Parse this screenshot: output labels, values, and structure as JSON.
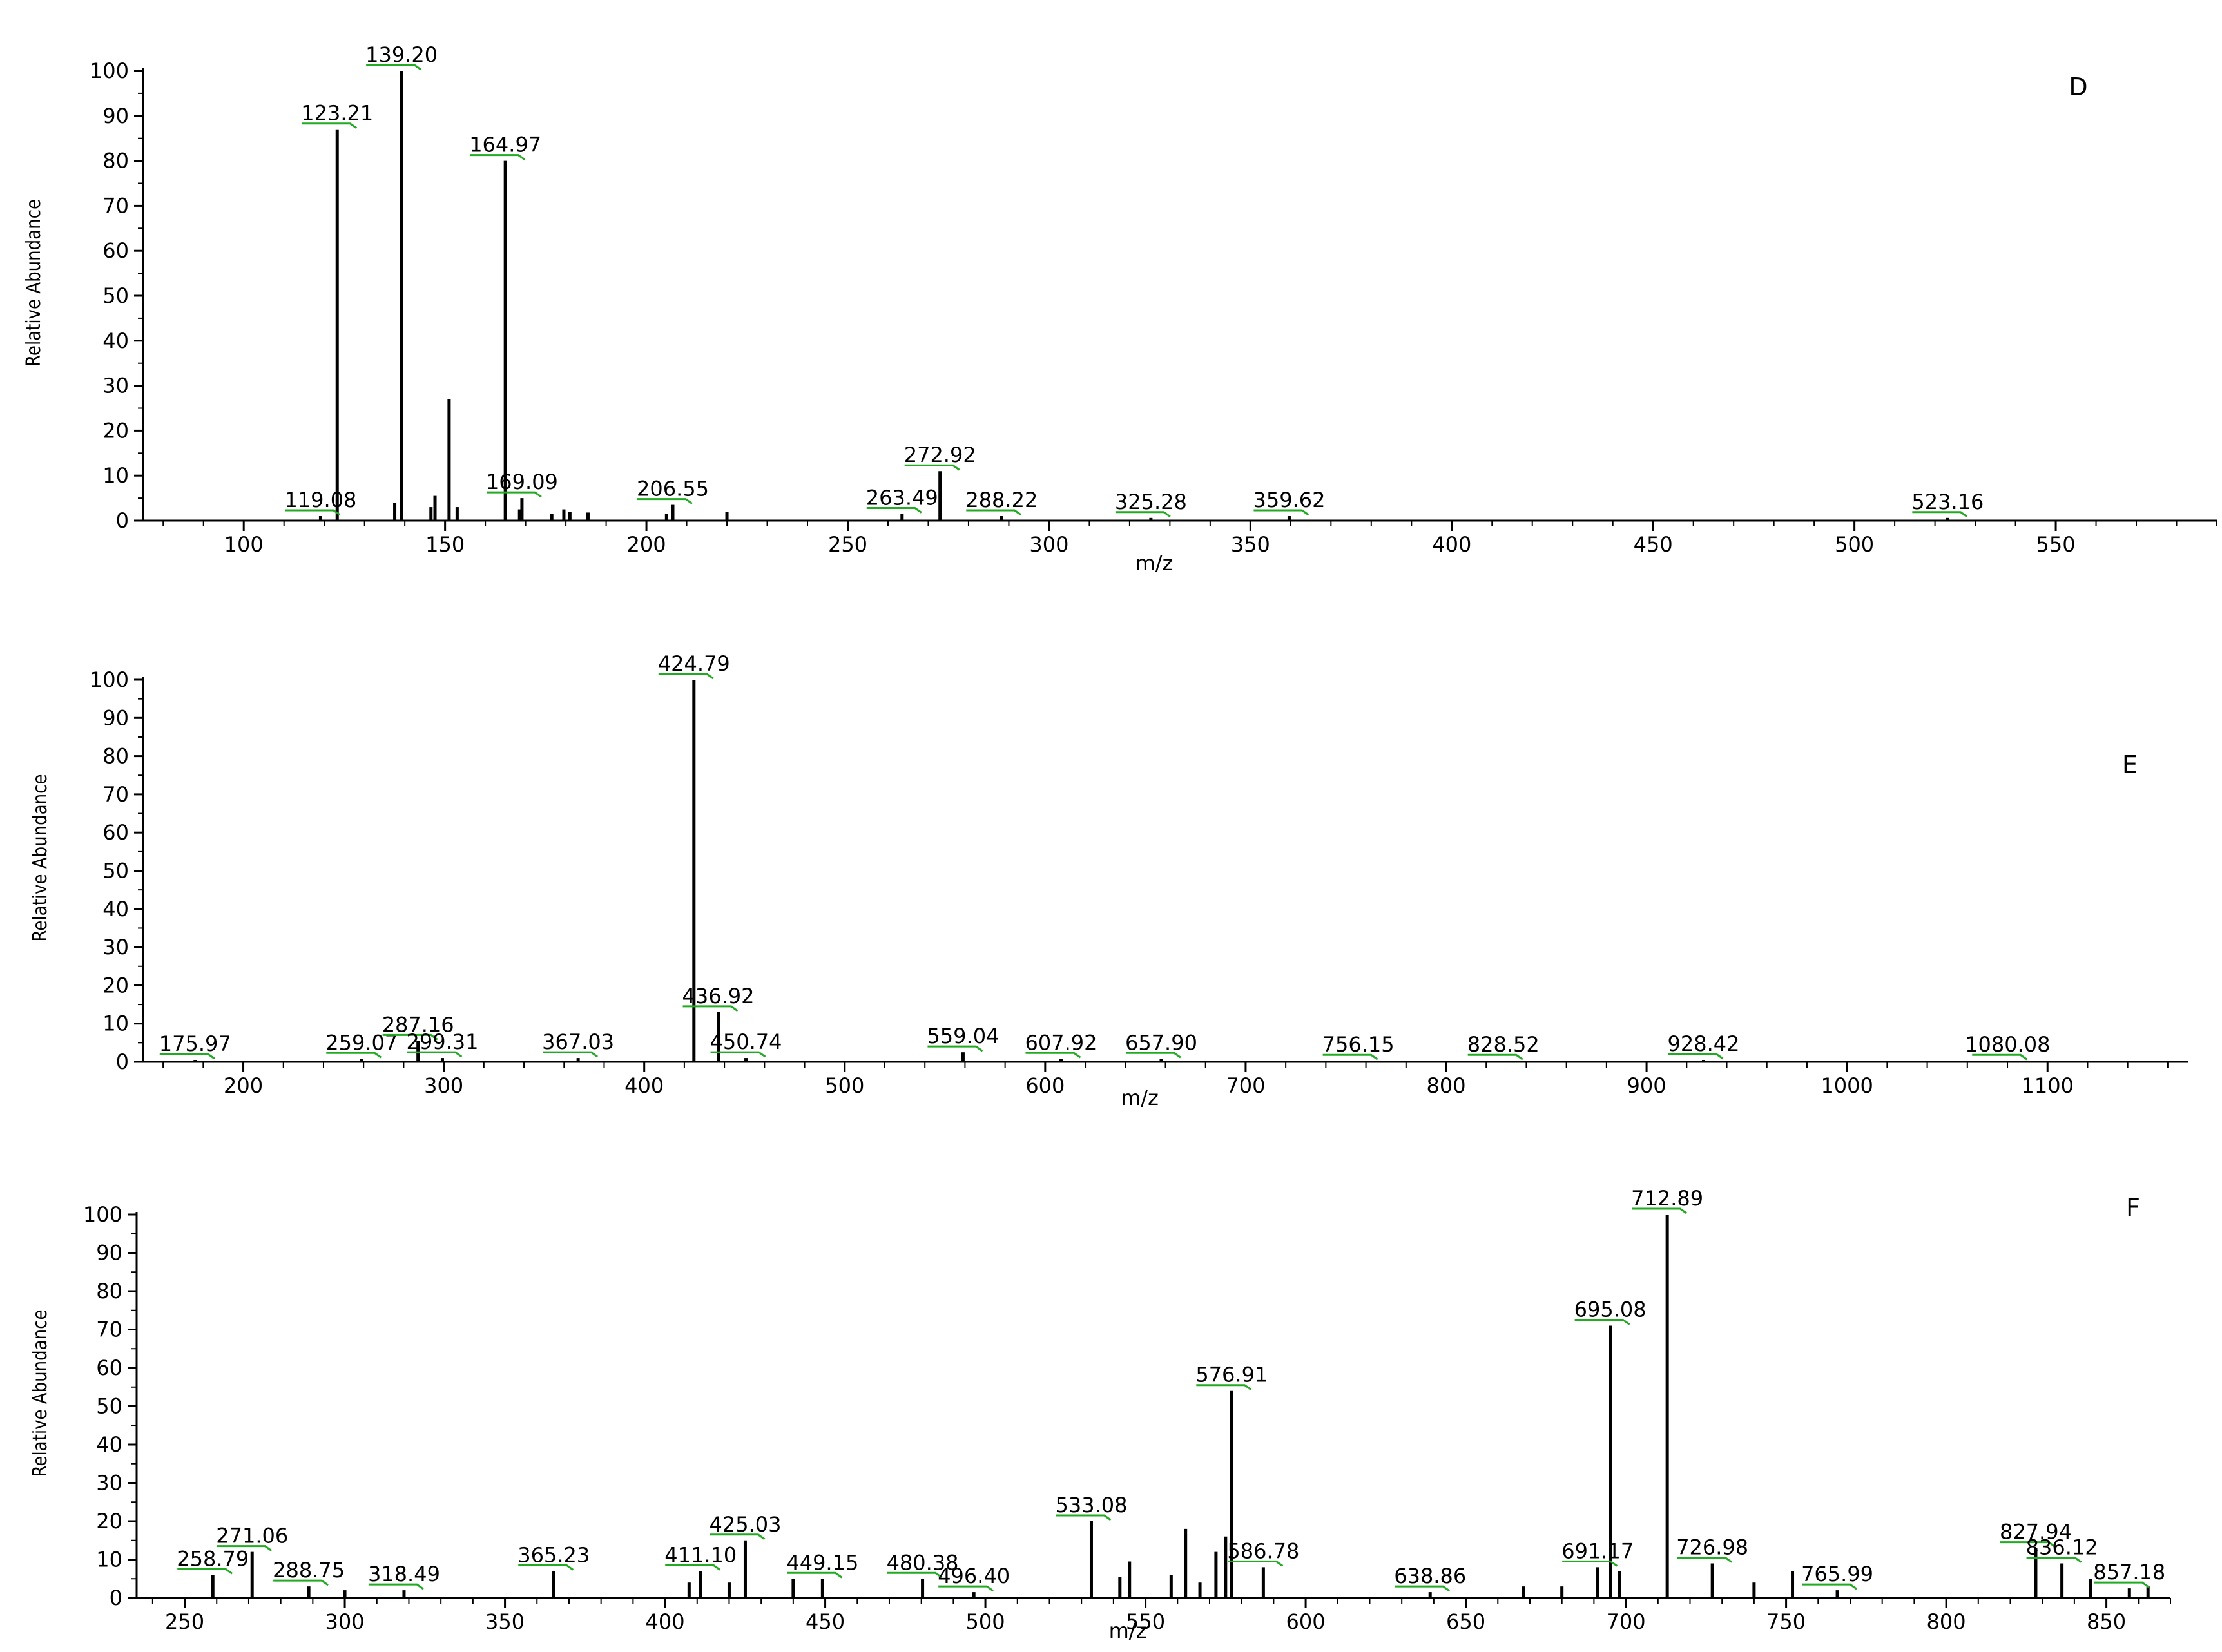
{
  "chart_data": [
    {
      "type": "bar",
      "panel_label": "D",
      "xlabel": "m/z",
      "ylabel": "Relative Abundance",
      "xlim": [
        75,
        590
      ],
      "ylim": [
        0,
        100
      ],
      "x_ticks": [
        100,
        150,
        200,
        250,
        300,
        350,
        400,
        450,
        500,
        550
      ],
      "y_ticks": [
        0,
        10,
        20,
        30,
        40,
        50,
        60,
        70,
        80,
        90,
        100
      ],
      "peaks": [
        {
          "mz": 119.08,
          "intensity": 1.0,
          "label": "119.08"
        },
        {
          "mz": 123.21,
          "intensity": 87,
          "label": "123.21"
        },
        {
          "mz": 137.5,
          "intensity": 4
        },
        {
          "mz": 139.2,
          "intensity": 100,
          "label": "139.20"
        },
        {
          "mz": 146.5,
          "intensity": 3
        },
        {
          "mz": 147.5,
          "intensity": 5.5
        },
        {
          "mz": 151.0,
          "intensity": 27
        },
        {
          "mz": 153.0,
          "intensity": 3
        },
        {
          "mz": 164.97,
          "intensity": 80,
          "label": "164.97"
        },
        {
          "mz": 168.5,
          "intensity": 2.5
        },
        {
          "mz": 169.09,
          "intensity": 5,
          "label": "169.09"
        },
        {
          "mz": 176.5,
          "intensity": 1.5
        },
        {
          "mz": 179.5,
          "intensity": 2.5
        },
        {
          "mz": 181.0,
          "intensity": 2
        },
        {
          "mz": 185.5,
          "intensity": 1.8
        },
        {
          "mz": 205.0,
          "intensity": 1.5
        },
        {
          "mz": 206.55,
          "intensity": 3.5,
          "label": "206.55"
        },
        {
          "mz": 220.0,
          "intensity": 2
        },
        {
          "mz": 263.49,
          "intensity": 1.5,
          "label": "263.49"
        },
        {
          "mz": 272.92,
          "intensity": 11,
          "label": "272.92"
        },
        {
          "mz": 288.22,
          "intensity": 1,
          "label": "288.22"
        },
        {
          "mz": 325.28,
          "intensity": 0.6,
          "label": "325.28"
        },
        {
          "mz": 359.62,
          "intensity": 1,
          "label": "359.62"
        },
        {
          "mz": 523.16,
          "intensity": 0.6,
          "label": "523.16"
        }
      ]
    },
    {
      "type": "bar",
      "panel_label": "E",
      "xlabel": "m/z",
      "ylabel": "Relative Abundance",
      "xlim": [
        150,
        1170
      ],
      "ylim": [
        0,
        100
      ],
      "x_ticks": [
        200,
        300,
        400,
        500,
        600,
        700,
        800,
        900,
        1000,
        1100
      ],
      "y_ticks": [
        0,
        10,
        20,
        30,
        40,
        50,
        60,
        70,
        80,
        90,
        100
      ],
      "peaks": [
        {
          "mz": 175.97,
          "intensity": 0.5,
          "label": "175.97"
        },
        {
          "mz": 259.07,
          "intensity": 0.8,
          "label": "259.07"
        },
        {
          "mz": 287.16,
          "intensity": 5.5,
          "label": "287.16"
        },
        {
          "mz": 299.31,
          "intensity": 1,
          "label": "299.31"
        },
        {
          "mz": 367.03,
          "intensity": 1,
          "label": "367.03"
        },
        {
          "mz": 424.79,
          "intensity": 100,
          "label": "424.79"
        },
        {
          "mz": 436.92,
          "intensity": 13,
          "label": "436.92"
        },
        {
          "mz": 450.74,
          "intensity": 1,
          "label": "450.74"
        },
        {
          "mz": 559.04,
          "intensity": 2.5,
          "label": "559.04"
        },
        {
          "mz": 607.92,
          "intensity": 0.8,
          "label": "607.92"
        },
        {
          "mz": 657.9,
          "intensity": 0.8,
          "label": "657.90"
        },
        {
          "mz": 756.15,
          "intensity": 0.3,
          "label": "756.15"
        },
        {
          "mz": 828.52,
          "intensity": 0.3,
          "label": "828.52"
        },
        {
          "mz": 928.42,
          "intensity": 0.5,
          "label": "928.42"
        },
        {
          "mz": 1080.08,
          "intensity": 0.3,
          "label": "1080.08"
        }
      ]
    },
    {
      "type": "bar",
      "panel_label": "F",
      "xlabel": "m/z",
      "ylabel": "Relative Abundance",
      "xlim": [
        235,
        870
      ],
      "ylim": [
        0,
        100
      ],
      "x_ticks": [
        250,
        300,
        350,
        400,
        450,
        500,
        550,
        600,
        650,
        700,
        750,
        800,
        850
      ],
      "y_ticks": [
        0,
        10,
        20,
        30,
        40,
        50,
        60,
        70,
        80,
        90,
        100
      ],
      "peaks": [
        {
          "mz": 258.79,
          "intensity": 6,
          "label": "258.79"
        },
        {
          "mz": 271.06,
          "intensity": 12,
          "label": "271.06"
        },
        {
          "mz": 288.75,
          "intensity": 3,
          "label": "288.75"
        },
        {
          "mz": 300.0,
          "intensity": 2
        },
        {
          "mz": 318.49,
          "intensity": 2,
          "label": "318.49"
        },
        {
          "mz": 365.23,
          "intensity": 7,
          "label": "365.23"
        },
        {
          "mz": 407.5,
          "intensity": 4
        },
        {
          "mz": 411.1,
          "intensity": 7,
          "label": "411.10"
        },
        {
          "mz": 420.0,
          "intensity": 4
        },
        {
          "mz": 425.03,
          "intensity": 15,
          "label": "425.03"
        },
        {
          "mz": 440.0,
          "intensity": 5
        },
        {
          "mz": 449.15,
          "intensity": 5,
          "label": "449.15"
        },
        {
          "mz": 480.38,
          "intensity": 5,
          "label": "480.38"
        },
        {
          "mz": 496.4,
          "intensity": 1.5,
          "label": "496.40"
        },
        {
          "mz": 533.08,
          "intensity": 20,
          "label": "533.08"
        },
        {
          "mz": 542.0,
          "intensity": 5.5
        },
        {
          "mz": 545.0,
          "intensity": 9.5
        },
        {
          "mz": 558.0,
          "intensity": 6
        },
        {
          "mz": 562.5,
          "intensity": 18
        },
        {
          "mz": 567.0,
          "intensity": 4
        },
        {
          "mz": 572.0,
          "intensity": 12
        },
        {
          "mz": 575.0,
          "intensity": 16
        },
        {
          "mz": 576.91,
          "intensity": 54,
          "label": "576.91"
        },
        {
          "mz": 586.78,
          "intensity": 8,
          "label": "586.78"
        },
        {
          "mz": 638.86,
          "intensity": 1.5,
          "label": "638.86"
        },
        {
          "mz": 668.0,
          "intensity": 3
        },
        {
          "mz": 680.0,
          "intensity": 3
        },
        {
          "mz": 691.17,
          "intensity": 8,
          "label": "691.17"
        },
        {
          "mz": 695.08,
          "intensity": 71,
          "label": "695.08"
        },
        {
          "mz": 698.0,
          "intensity": 7
        },
        {
          "mz": 712.89,
          "intensity": 100,
          "label": "712.89"
        },
        {
          "mz": 726.98,
          "intensity": 9,
          "label": "726.98"
        },
        {
          "mz": 740.0,
          "intensity": 4
        },
        {
          "mz": 752.0,
          "intensity": 7
        },
        {
          "mz": 765.99,
          "intensity": 2,
          "label": "765.99"
        },
        {
          "mz": 827.94,
          "intensity": 13,
          "label": "827.94"
        },
        {
          "mz": 836.12,
          "intensity": 9,
          "label": "836.12"
        },
        {
          "mz": 845.0,
          "intensity": 5
        },
        {
          "mz": 857.18,
          "intensity": 2.5,
          "label": "857.18"
        },
        {
          "mz": 863.0,
          "intensity": 3
        }
      ]
    }
  ]
}
